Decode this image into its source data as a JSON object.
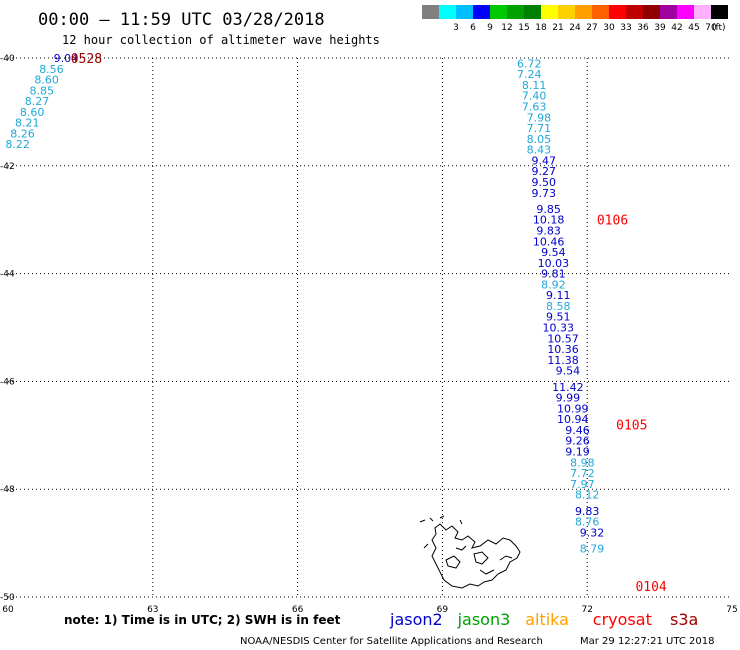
{
  "title": "00:00 – 11:59 UTC 03/28/2018",
  "subtitle": "12 hour collection of altimeter wave heights",
  "colorbar": {
    "unit": "(ft)",
    "bins": [
      {
        "label": "",
        "color": "#808080"
      },
      {
        "label": "3",
        "color": "#00ffff"
      },
      {
        "label": "6",
        "color": "#00bfff"
      },
      {
        "label": "9",
        "color": "#0000ff"
      },
      {
        "label": "12",
        "color": "#00c800"
      },
      {
        "label": "15",
        "color": "#00a000"
      },
      {
        "label": "18",
        "color": "#008000"
      },
      {
        "label": "21",
        "color": "#ffff00"
      },
      {
        "label": "24",
        "color": "#ffd000"
      },
      {
        "label": "27",
        "color": "#ffa000"
      },
      {
        "label": "30",
        "color": "#ff6000"
      },
      {
        "label": "33",
        "color": "#ff0000"
      },
      {
        "label": "36",
        "color": "#c00000"
      },
      {
        "label": "39",
        "color": "#900000"
      },
      {
        "label": "42",
        "color": "#a000a0"
      },
      {
        "label": "45",
        "color": "#ff00ff"
      },
      {
        "label": "70",
        "color": "#ffb0ff"
      },
      {
        "label": "",
        "color": "#000000"
      }
    ]
  },
  "axes": {
    "lon_ticks": [
      "60",
      "63",
      "66",
      "69",
      "72",
      "75"
    ],
    "lat_ticks": [
      "-40",
      "-42",
      "-44",
      "-46",
      "-48",
      "-50"
    ],
    "lon_range": [
      60,
      75
    ],
    "lat_range": [
      -40,
      -50
    ]
  },
  "colors": {
    "light_blue": "#20a8d8",
    "dark_blue": "#0000cc",
    "red": "#ff0000",
    "dark_red": "#a00000"
  },
  "tracks": [
    {
      "name": "track-0528",
      "time_label": "0528",
      "time_color": "#a00000",
      "time_lat": -40.0,
      "time_lon": 61.3,
      "points": [
        {
          "lat": -40.0,
          "lon": 61.2,
          "v": "9.04",
          "c": "#0000cc"
        },
        {
          "lat": -40.2,
          "lon": 60.9,
          "v": "8.56",
          "c": "#20a8d8"
        },
        {
          "lat": -40.4,
          "lon": 60.8,
          "v": "8.60",
          "c": "#20a8d8"
        },
        {
          "lat": -40.6,
          "lon": 60.7,
          "v": "8.85",
          "c": "#20a8d8"
        },
        {
          "lat": -40.8,
          "lon": 60.6,
          "v": "8.27",
          "c": "#20a8d8"
        },
        {
          "lat": -41.0,
          "lon": 60.5,
          "v": "8.60",
          "c": "#20a8d8"
        },
        {
          "lat": -41.2,
          "lon": 60.4,
          "v": "8.21",
          "c": "#20a8d8"
        },
        {
          "lat": -41.4,
          "lon": 60.3,
          "v": "8.26",
          "c": "#20a8d8"
        },
        {
          "lat": -41.6,
          "lon": 60.2,
          "v": "8.22",
          "c": "#20a8d8"
        }
      ]
    },
    {
      "name": "track-main",
      "time_labels": [
        {
          "text": "0106",
          "lat": -43.0,
          "lon": 72.2,
          "color": "#ff0000"
        },
        {
          "text": "0105",
          "lat": -46.8,
          "lon": 72.6,
          "color": "#ff0000"
        },
        {
          "text": "0104",
          "lat": -49.8,
          "lon": 73.0,
          "color": "#ff0000"
        }
      ],
      "points": [
        {
          "lat": -40.1,
          "lon": 70.8,
          "v": "6.72",
          "c": "#20a8d8"
        },
        {
          "lat": -40.3,
          "lon": 70.8,
          "v": "7.24",
          "c": "#20a8d8"
        },
        {
          "lat": -40.5,
          "lon": 70.9,
          "v": "8.11",
          "c": "#20a8d8"
        },
        {
          "lat": -40.7,
          "lon": 70.9,
          "v": "7.40",
          "c": "#20a8d8"
        },
        {
          "lat": -40.9,
          "lon": 70.9,
          "v": "7.63",
          "c": "#20a8d8"
        },
        {
          "lat": -41.1,
          "lon": 71.0,
          "v": "7.98",
          "c": "#20a8d8"
        },
        {
          "lat": -41.3,
          "lon": 71.0,
          "v": "7.71",
          "c": "#20a8d8"
        },
        {
          "lat": -41.5,
          "lon": 71.0,
          "v": "8.05",
          "c": "#20a8d8"
        },
        {
          "lat": -41.7,
          "lon": 71.0,
          "v": "8.43",
          "c": "#20a8d8"
        },
        {
          "lat": -41.9,
          "lon": 71.1,
          "v": "9.47",
          "c": "#0000cc"
        },
        {
          "lat": -42.1,
          "lon": 71.1,
          "v": "9.27",
          "c": "#0000cc"
        },
        {
          "lat": -42.3,
          "lon": 71.1,
          "v": "9.50",
          "c": "#0000cc"
        },
        {
          "lat": -42.5,
          "lon": 71.1,
          "v": "9.73",
          "c": "#0000cc"
        },
        {
          "lat": -42.8,
          "lon": 71.2,
          "v": "9.85",
          "c": "#0000cc"
        },
        {
          "lat": -43.0,
          "lon": 71.2,
          "v": "10.18",
          "c": "#0000cc"
        },
        {
          "lat": -43.2,
          "lon": 71.2,
          "v": "9.83",
          "c": "#0000cc"
        },
        {
          "lat": -43.4,
          "lon": 71.2,
          "v": "10.46",
          "c": "#0000cc"
        },
        {
          "lat": -43.6,
          "lon": 71.3,
          "v": "9.54",
          "c": "#0000cc"
        },
        {
          "lat": -43.8,
          "lon": 71.3,
          "v": "10.03",
          "c": "#0000cc"
        },
        {
          "lat": -44.0,
          "lon": 71.3,
          "v": "9.81",
          "c": "#0000cc"
        },
        {
          "lat": -44.2,
          "lon": 71.3,
          "v": "8.92",
          "c": "#20a8d8"
        },
        {
          "lat": -44.4,
          "lon": 71.4,
          "v": "9.11",
          "c": "#0000cc"
        },
        {
          "lat": -44.6,
          "lon": 71.4,
          "v": "8.58",
          "c": "#20a8d8"
        },
        {
          "lat": -44.8,
          "lon": 71.4,
          "v": "9.51",
          "c": "#0000cc"
        },
        {
          "lat": -45.0,
          "lon": 71.4,
          "v": "10.33",
          "c": "#0000cc"
        },
        {
          "lat": -45.2,
          "lon": 71.5,
          "v": "10.57",
          "c": "#0000cc"
        },
        {
          "lat": -45.4,
          "lon": 71.5,
          "v": "10.36",
          "c": "#0000cc"
        },
        {
          "lat": -45.6,
          "lon": 71.5,
          "v": "11.38",
          "c": "#0000cc"
        },
        {
          "lat": -45.8,
          "lon": 71.6,
          "v": "9.54",
          "c": "#0000cc"
        },
        {
          "lat": -46.1,
          "lon": 71.6,
          "v": "11.42",
          "c": "#0000cc"
        },
        {
          "lat": -46.3,
          "lon": 71.6,
          "v": "9.99",
          "c": "#0000cc"
        },
        {
          "lat": -46.5,
          "lon": 71.7,
          "v": "10.99",
          "c": "#0000cc"
        },
        {
          "lat": -46.7,
          "lon": 71.7,
          "v": "10.94",
          "c": "#0000cc"
        },
        {
          "lat": -46.9,
          "lon": 71.8,
          "v": "9.46",
          "c": "#0000cc"
        },
        {
          "lat": -47.1,
          "lon": 71.8,
          "v": "9.26",
          "c": "#0000cc"
        },
        {
          "lat": -47.3,
          "lon": 71.8,
          "v": "9.19",
          "c": "#0000cc"
        },
        {
          "lat": -47.5,
          "lon": 71.9,
          "v": "8.98",
          "c": "#20a8d8"
        },
        {
          "lat": -47.7,
          "lon": 71.9,
          "v": "7.72",
          "c": "#20a8d8"
        },
        {
          "lat": -47.9,
          "lon": 71.9,
          "v": "7.97",
          "c": "#20a8d8"
        },
        {
          "lat": -48.1,
          "lon": 72.0,
          "v": "8.12",
          "c": "#20a8d8"
        },
        {
          "lat": -48.4,
          "lon": 72.0,
          "v": "9.83",
          "c": "#0000cc"
        },
        {
          "lat": -48.6,
          "lon": 72.0,
          "v": "8.76",
          "c": "#20a8d8"
        },
        {
          "lat": -48.8,
          "lon": 72.1,
          "v": "9.32",
          "c": "#0000cc"
        },
        {
          "lat": -49.1,
          "lon": 72.1,
          "v": "8.79",
          "c": "#20a8d8"
        }
      ]
    }
  ],
  "footer": {
    "note": "note: 1) Time is in UTC; 2) SWH is in feet",
    "satellites": [
      {
        "name": "jason2",
        "color": "#0000cc"
      },
      {
        "name": "jason3",
        "color": "#00a000"
      },
      {
        "name": "altika",
        "color": "#ffa000"
      },
      {
        "name": "cryosat",
        "color": "#ff0000"
      },
      {
        "name": "s3a",
        "color": "#a00000"
      }
    ],
    "credit": "NOAA/NESDIS Center for Satellite Applications and Research",
    "timestamp": "Mar 29 12:27:21 UTC 2018"
  }
}
